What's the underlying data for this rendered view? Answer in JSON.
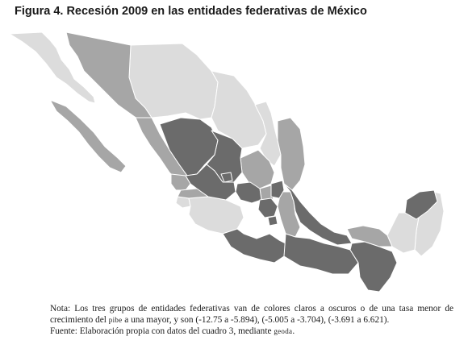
{
  "figure": {
    "title": "Figura 4. Recesión 2009 en las entidades federativas de México"
  },
  "legend_classes": [
    {
      "range": "(-12.75 a -5.894)",
      "shade": "light",
      "color": "#dcdcdc"
    },
    {
      "range": "(-5.005 a -3.704)",
      "shade": "medium",
      "color": "#a6a6a6"
    },
    {
      "range": "(-3.691 a 6.621)",
      "shade": "dark",
      "color": "#6b6b6b"
    }
  ],
  "colors": {
    "border": "#ffffff",
    "outline": "#555555"
  },
  "note": {
    "part1": "Nota: Los tres grupos de entidades federativas van de colores claros a oscuros o de una tasa menor de crecimiento del ",
    "pibe": "pibe",
    "part2": " a una mayor, y son (-12.75 a -5.894), (-5.005 a -3.704), (-3.691 a 6.621)."
  },
  "source": {
    "text": "Fuente: Elaboración propia con datos del cuadro 3, mediante ",
    "geoda": "geoda",
    "end": "."
  }
}
